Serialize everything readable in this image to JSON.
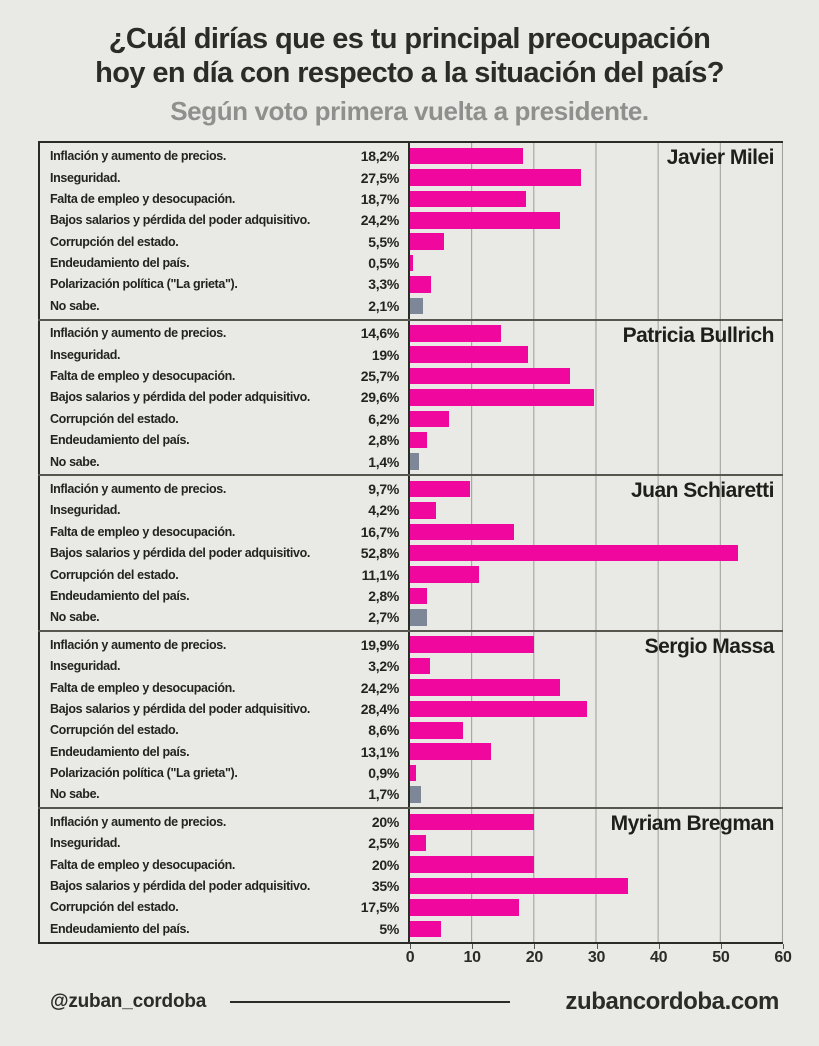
{
  "title_line1": "¿Cuál dirías que es tu principal preocupación",
  "title_line2": "hoy en día con respecto a la situación del país?",
  "subtitle": "Según voto primera vuelta a presidente.",
  "footer": {
    "handle": "@zuban_cordoba",
    "website": "zubancordoba.com"
  },
  "colors": {
    "background": "#e9e9e5",
    "bar_pink": "#f0079e",
    "bar_gray": "#7d8797",
    "subtitle_gray": "#8f8f8d"
  },
  "chart_data": {
    "type": "bar",
    "orientation": "horizontal",
    "title": "¿Cuál dirías que es tu principal preocupación hoy en día con respecto a la situación del país?",
    "subtitle": "Según voto primera vuelta a presidente.",
    "xlim": [
      0,
      60
    ],
    "x_ticks": [
      0,
      10,
      20,
      30,
      40,
      50,
      60
    ],
    "grid": true,
    "groups": [
      {
        "name": "Javier Milei",
        "rows": [
          {
            "label": "Inflación y aumento de precios.",
            "value": 18.2,
            "display": "18,2%",
            "color": "pink"
          },
          {
            "label": "Inseguridad.",
            "value": 27.5,
            "display": "27,5%",
            "color": "pink"
          },
          {
            "label": "Falta de empleo y desocupación.",
            "value": 18.7,
            "display": "18,7%",
            "color": "pink"
          },
          {
            "label": "Bajos salarios y pérdida del poder adquisitivo.",
            "value": 24.2,
            "display": "24,2%",
            "color": "pink"
          },
          {
            "label": "Corrupción del estado.",
            "value": 5.5,
            "display": "5,5%",
            "color": "pink"
          },
          {
            "label": "Endeudamiento del país.",
            "value": 0.5,
            "display": "0,5%",
            "color": "pink"
          },
          {
            "label": "Polarización política (\"La grieta\").",
            "value": 3.3,
            "display": "3,3%",
            "color": "pink"
          },
          {
            "label": "No sabe.",
            "value": 2.1,
            "display": "2,1%",
            "color": "gray"
          }
        ]
      },
      {
        "name": "Patricia Bullrich",
        "rows": [
          {
            "label": "Inflación y aumento de precios.",
            "value": 14.6,
            "display": "14,6%",
            "color": "pink"
          },
          {
            "label": "Inseguridad.",
            "value": 19,
            "display": "19%",
            "color": "pink"
          },
          {
            "label": "Falta de empleo y desocupación.",
            "value": 25.7,
            "display": "25,7%",
            "color": "pink"
          },
          {
            "label": "Bajos salarios y pérdida del poder adquisitivo.",
            "value": 29.6,
            "display": "29,6%",
            "color": "pink"
          },
          {
            "label": "Corrupción del estado.",
            "value": 6.2,
            "display": "6,2%",
            "color": "pink"
          },
          {
            "label": "Endeudamiento del país.",
            "value": 2.8,
            "display": "2,8%",
            "color": "pink"
          },
          {
            "label": "No sabe.",
            "value": 1.4,
            "display": "1,4%",
            "color": "gray"
          }
        ]
      },
      {
        "name": "Juan Schiaretti",
        "rows": [
          {
            "label": "Inflación y aumento de precios.",
            "value": 9.7,
            "display": "9,7%",
            "color": "pink"
          },
          {
            "label": "Inseguridad.",
            "value": 4.2,
            "display": "4,2%",
            "color": "pink"
          },
          {
            "label": "Falta de empleo y desocupación.",
            "value": 16.7,
            "display": "16,7%",
            "color": "pink"
          },
          {
            "label": "Bajos salarios y pérdida del poder adquisitivo.",
            "value": 52.8,
            "display": "52,8%",
            "color": "pink"
          },
          {
            "label": "Corrupción del estado.",
            "value": 11.1,
            "display": "11,1%",
            "color": "pink"
          },
          {
            "label": "Endeudamiento del país.",
            "value": 2.8,
            "display": "2,8%",
            "color": "pink"
          },
          {
            "label": "No sabe.",
            "value": 2.7,
            "display": "2,7%",
            "color": "gray"
          }
        ]
      },
      {
        "name": "Sergio Massa",
        "rows": [
          {
            "label": "Inflación y aumento de precios.",
            "value": 19.9,
            "display": "19,9%",
            "color": "pink"
          },
          {
            "label": "Inseguridad.",
            "value": 3.2,
            "display": "3,2%",
            "color": "pink"
          },
          {
            "label": "Falta de empleo y desocupación.",
            "value": 24.2,
            "display": "24,2%",
            "color": "pink"
          },
          {
            "label": "Bajos salarios y pérdida del poder adquisitivo.",
            "value": 28.4,
            "display": "28,4%",
            "color": "pink"
          },
          {
            "label": "Corrupción del estado.",
            "value": 8.6,
            "display": "8,6%",
            "color": "pink"
          },
          {
            "label": "Endeudamiento del país.",
            "value": 13.1,
            "display": "13,1%",
            "color": "pink"
          },
          {
            "label": "Polarización política (\"La grieta\").",
            "value": 0.9,
            "display": "0,9%",
            "color": "pink"
          },
          {
            "label": "No sabe.",
            "value": 1.7,
            "display": "1,7%",
            "color": "gray"
          }
        ]
      },
      {
        "name": "Myriam Bregman",
        "rows": [
          {
            "label": "Inflación y aumento de precios.",
            "value": 20,
            "display": "20%",
            "color": "pink"
          },
          {
            "label": "Inseguridad.",
            "value": 2.5,
            "display": "2,5%",
            "color": "pink"
          },
          {
            "label": "Falta de empleo y desocupación.",
            "value": 20,
            "display": "20%",
            "color": "pink"
          },
          {
            "label": "Bajos salarios y pérdida del poder adquisitivo.",
            "value": 35,
            "display": "35%",
            "color": "pink"
          },
          {
            "label": "Corrupción del estado.",
            "value": 17.5,
            "display": "17,5%",
            "color": "pink"
          },
          {
            "label": "Endeudamiento del país.",
            "value": 5,
            "display": "5%",
            "color": "pink"
          }
        ]
      }
    ]
  }
}
